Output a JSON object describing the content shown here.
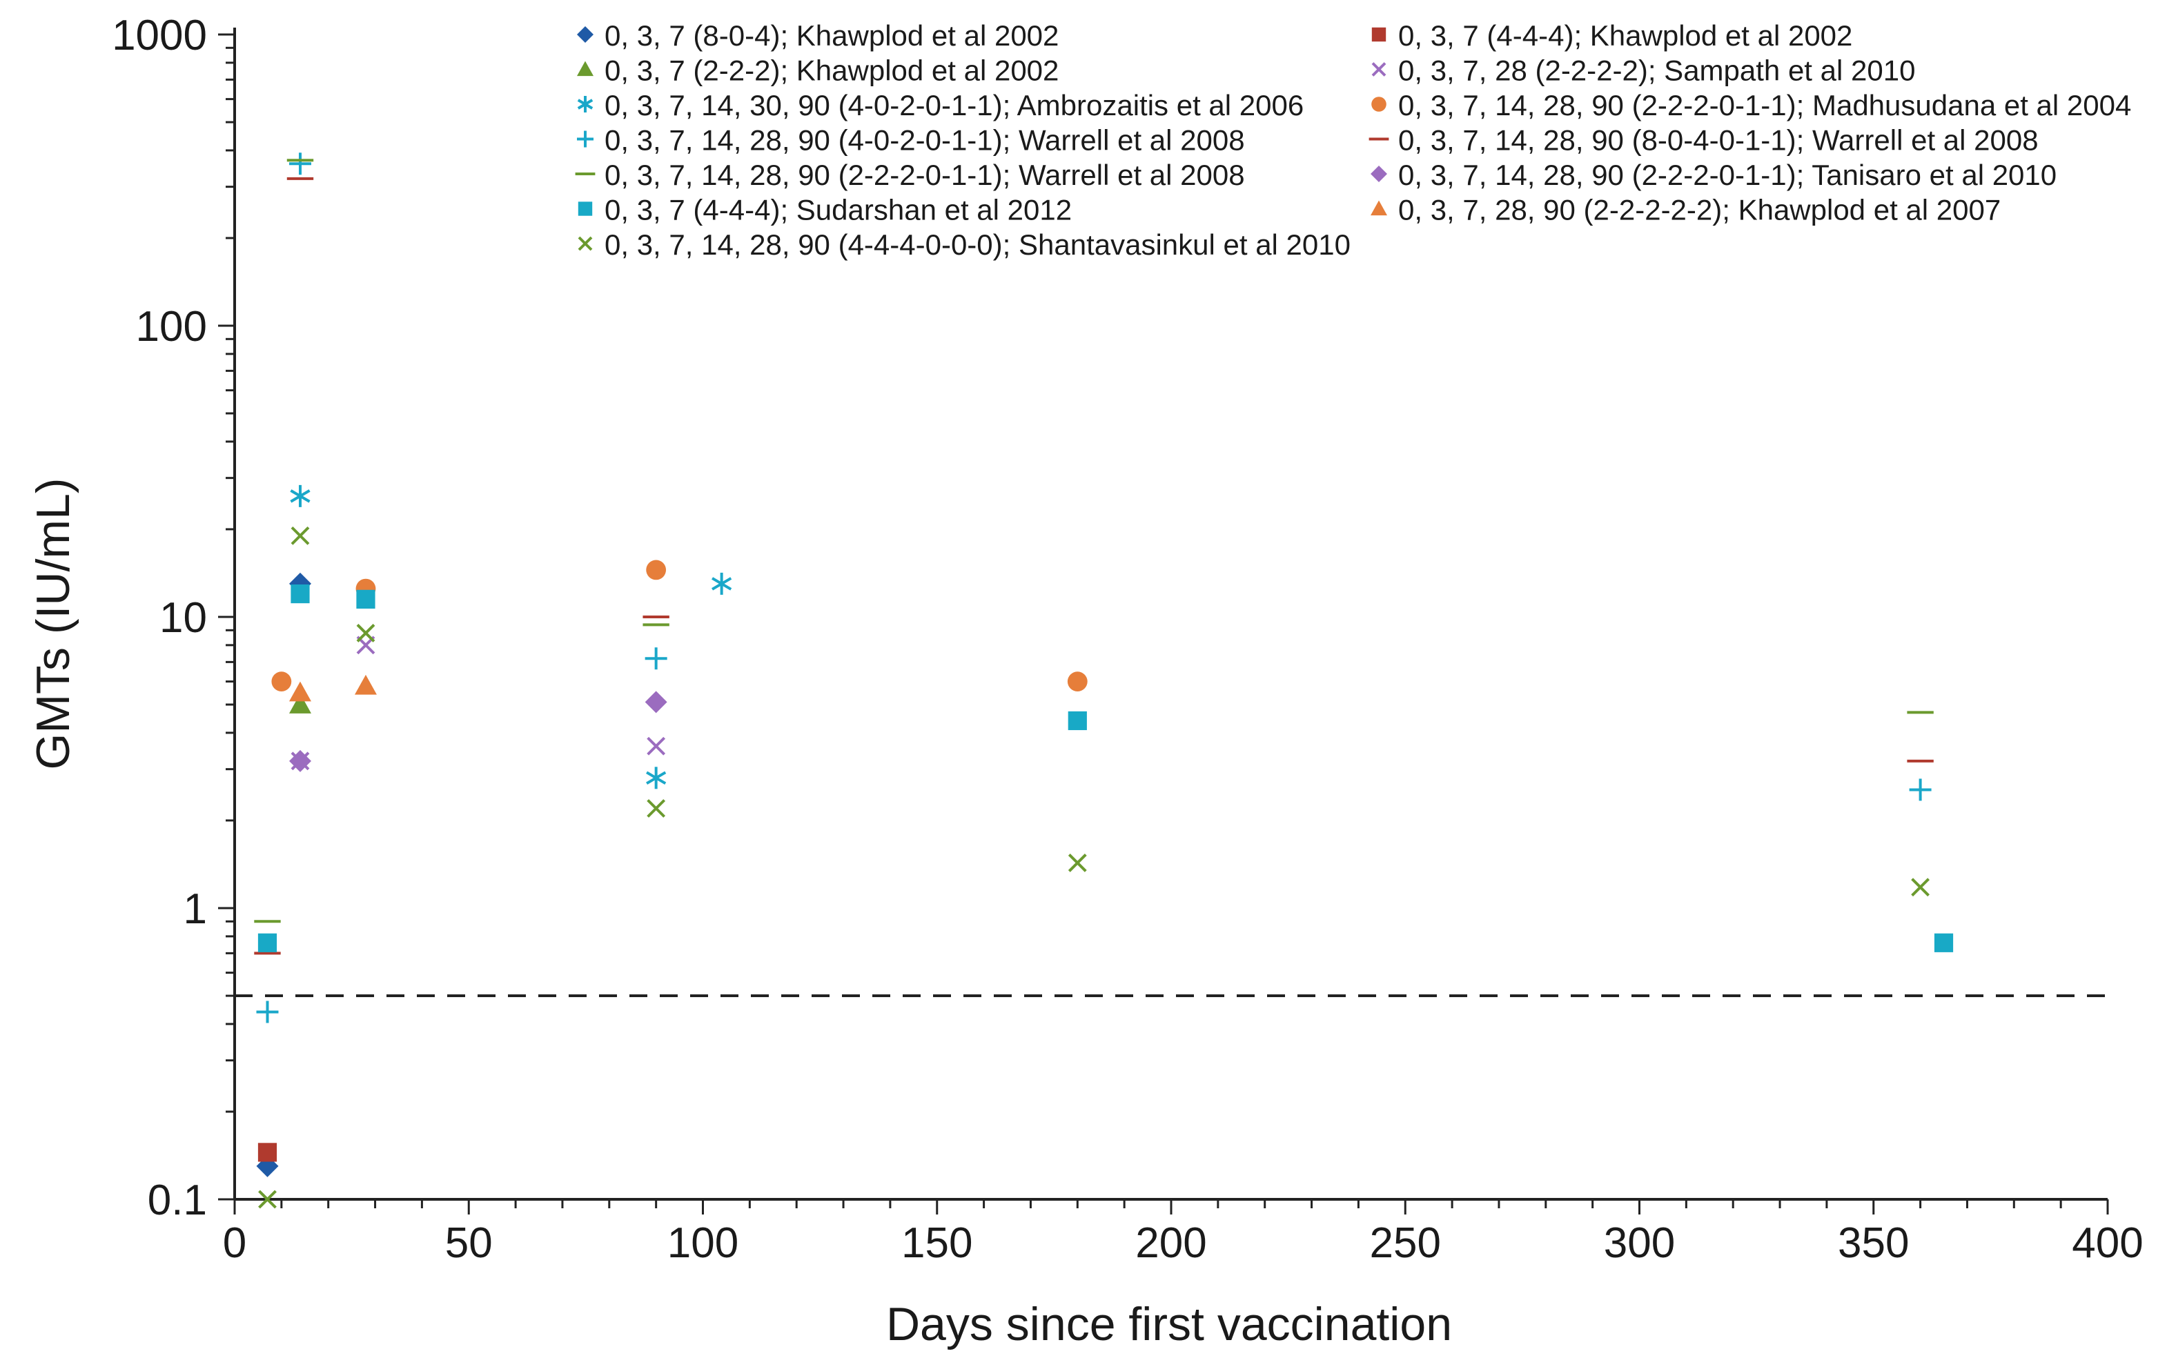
{
  "chart_data": {
    "type": "scatter",
    "title": "",
    "xlabel": "Days since first vaccination",
    "ylabel": "GMTs (IU/mL)",
    "xlim": [
      0,
      400
    ],
    "ylim": [
      0.1,
      1000
    ],
    "yscale": "log",
    "x_ticks": [
      0,
      50,
      100,
      150,
      200,
      250,
      300,
      350,
      400
    ],
    "x_tick_labels": [
      "0",
      "50",
      "100",
      "150",
      "200",
      "250",
      "300",
      "350",
      "400"
    ],
    "y_ticks": [
      0.1,
      1,
      10,
      100,
      1000
    ],
    "y_tick_labels": [
      "0.1",
      "1",
      "10",
      "100",
      "1000"
    ],
    "reference_line": {
      "y": 0.5,
      "style": "dashed"
    },
    "legend_position": "top",
    "series": [
      {
        "name": "0, 3, 7 (8-0-4); Khawplod et al 2002",
        "marker": "diamond",
        "color": "#1f5aa6",
        "points": [
          [
            7,
            0.13
          ],
          [
            14,
            13
          ]
        ]
      },
      {
        "name": "0, 3, 7 (4-4-4); Khawplod et al 2002",
        "marker": "square",
        "color": "#b03a2e",
        "points": [
          [
            7,
            0.145
          ]
        ]
      },
      {
        "name": "0, 3, 7 (2-2-2); Khawplod et al 2002",
        "marker": "triangle",
        "color": "#6b9a2e",
        "points": [
          [
            14,
            5
          ]
        ]
      },
      {
        "name": "0, 3, 7, 28 (2-2-2-2); Sampath et al 2010",
        "marker": "x",
        "color": "#9b6cbf",
        "points": [
          [
            14,
            3.2
          ],
          [
            28,
            8
          ],
          [
            90,
            3.6
          ]
        ]
      },
      {
        "name": "0, 3, 7, 14, 30, 90 (4-0-2-0-1-1); Ambrozaitis et al 2006",
        "marker": "asterisk",
        "color": "#1aa7c9",
        "points": [
          [
            14,
            26
          ],
          [
            90,
            2.8
          ],
          [
            104,
            13
          ]
        ]
      },
      {
        "name": "0, 3, 7, 14, 28, 90 (2-2-2-0-1-1); Madhusudana et al 2004",
        "marker": "circle",
        "color": "#e67e3a",
        "points": [
          [
            10,
            6
          ],
          [
            28,
            12.5
          ],
          [
            90,
            14.5
          ],
          [
            180,
            6
          ]
        ]
      },
      {
        "name": "0, 3, 7, 14, 28, 90 (4-0-2-0-1-1); Warrell et al 2008",
        "marker": "plus",
        "color": "#1aa7c9",
        "points": [
          [
            7,
            0.44
          ],
          [
            14,
            360
          ],
          [
            90,
            7.2
          ],
          [
            360,
            2.55
          ]
        ]
      },
      {
        "name": "0, 3, 7, 14, 28, 90 (8-0-4-0-1-1); Warrell et al 2008",
        "marker": "dash",
        "color": "#b03a2e",
        "points": [
          [
            7,
            0.7
          ],
          [
            14,
            320
          ],
          [
            90,
            10
          ],
          [
            360,
            3.2
          ]
        ]
      },
      {
        "name": "0, 3, 7, 14, 28, 90 (2-2-2-0-1-1); Warrell et al 2008",
        "marker": "dash",
        "color": "#6b9a2e",
        "points": [
          [
            7,
            0.9
          ],
          [
            14,
            370
          ],
          [
            90,
            9.4
          ],
          [
            360,
            4.7
          ]
        ]
      },
      {
        "name": "0, 3, 7, 14, 28, 90 (2-2-2-0-1-1); Tanisaro et al 2010",
        "marker": "diamond",
        "color": "#9b6cbf",
        "points": [
          [
            14,
            3.2
          ],
          [
            90,
            5.1
          ]
        ]
      },
      {
        "name": "0, 3, 7 (4-4-4); Sudarshan et al 2012",
        "marker": "square",
        "color": "#18a9c6",
        "points": [
          [
            7,
            0.76
          ],
          [
            14,
            12
          ],
          [
            28,
            11.5
          ],
          [
            180,
            4.4
          ],
          [
            365,
            0.76
          ]
        ]
      },
      {
        "name": "0, 3, 7, 28, 90 (2-2-2-2-2); Khawplod et al 2007",
        "marker": "triangle",
        "color": "#e67e3a",
        "points": [
          [
            14,
            5.5
          ],
          [
            28,
            5.8
          ]
        ]
      },
      {
        "name": "0, 3, 7, 14, 28, 90 (4-4-4-0-0-0); Shantavasinkul et al 2010",
        "marker": "x",
        "color": "#6b9a2e",
        "points": [
          [
            7,
            0.1
          ],
          [
            14,
            19
          ],
          [
            28,
            8.8
          ],
          [
            90,
            2.2
          ],
          [
            180,
            1.43
          ],
          [
            360,
            1.18
          ]
        ]
      }
    ]
  }
}
